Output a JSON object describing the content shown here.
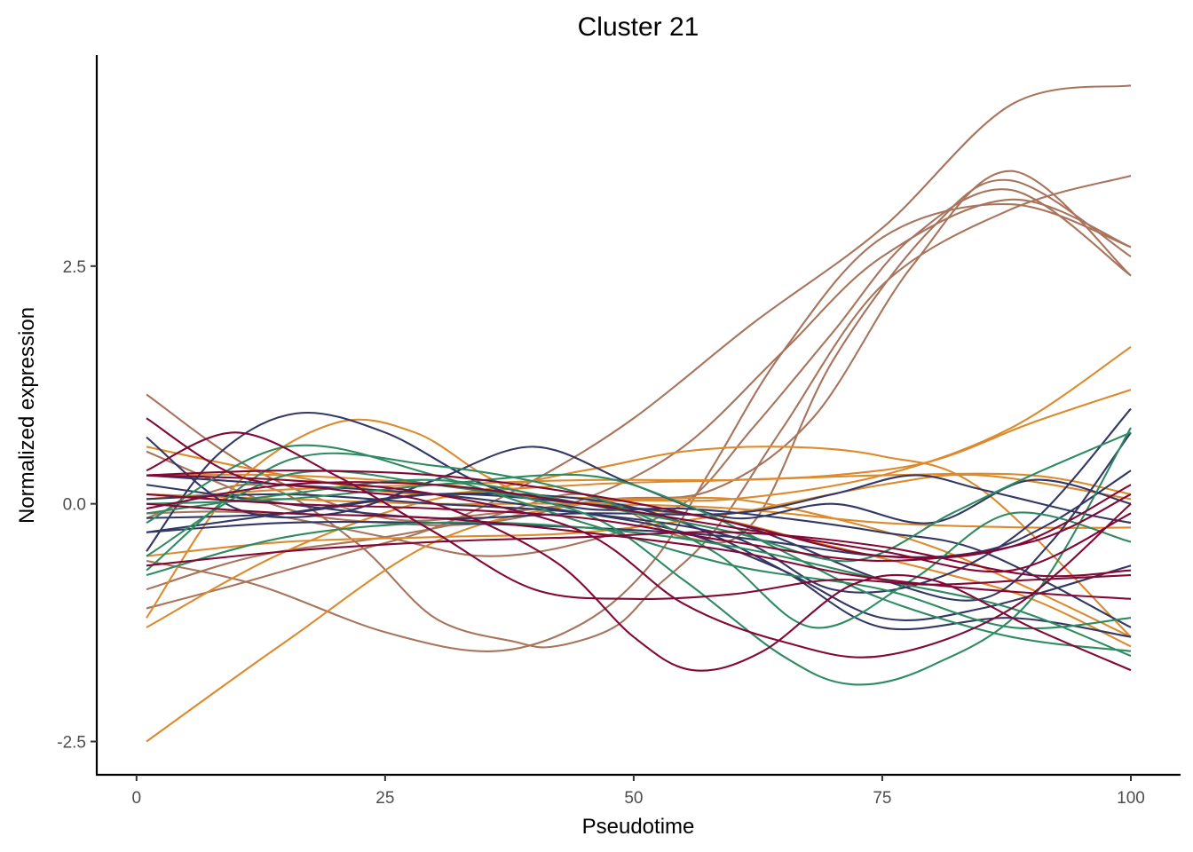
{
  "chart_data": {
    "type": "line",
    "title": "Cluster 21",
    "xlabel": "Pseudotime",
    "ylabel": "Normalized expression",
    "xlim": [
      -4,
      105
    ],
    "ylim": [
      -2.85,
      4.72
    ],
    "x_ticks": [
      0,
      25,
      50,
      75,
      100
    ],
    "x_tick_labels": [
      "0",
      "25",
      "50",
      "75",
      "100"
    ],
    "y_ticks": [
      -2.5,
      0.0,
      2.5
    ],
    "y_tick_labels": [
      "-2.5",
      "0.0",
      "2.5"
    ],
    "grid": false,
    "legend": "none",
    "colors": {
      "brown": "#a8745c",
      "orange": "#dc8a2c",
      "navy": "#323765",
      "green": "#2e8b61",
      "crimson": "#820835"
    },
    "series": [
      {
        "name": "brown-1",
        "color": "brown",
        "x": [
          1,
          12,
          25,
          36,
          48,
          58,
          68,
          78,
          88,
          100
        ],
        "y": [
          1.15,
          0.35,
          -0.15,
          -0.1,
          0.05,
          0.15,
          0.9,
          2.5,
          3.5,
          2.4
        ]
      },
      {
        "name": "brown-2",
        "color": "brown",
        "x": [
          1,
          12,
          25,
          35,
          45,
          55,
          62,
          70,
          80,
          88,
          100
        ],
        "y": [
          -0.9,
          -0.55,
          -0.35,
          -0.15,
          0.1,
          -0.35,
          -0.2,
          1.5,
          2.9,
          3.4,
          2.6
        ]
      },
      {
        "name": "brown-3",
        "color": "brown",
        "x": [
          1,
          15,
          25,
          35,
          45,
          55,
          65,
          75,
          88,
          100
        ],
        "y": [
          0.55,
          -0.05,
          -0.2,
          -0.2,
          0.05,
          0.6,
          1.6,
          2.6,
          3.2,
          2.7
        ]
      },
      {
        "name": "brown-4",
        "color": "brown",
        "x": [
          1,
          12,
          25,
          35,
          45,
          55,
          62,
          70,
          78,
          88,
          100
        ],
        "y": [
          -0.1,
          -0.1,
          -0.35,
          -0.55,
          -0.4,
          0.0,
          0.8,
          1.8,
          2.8,
          3.3,
          2.4
        ]
      },
      {
        "name": "brown-5",
        "color": "brown",
        "x": [
          1,
          12,
          25,
          36,
          45,
          52,
          58,
          65,
          75,
          88,
          100
        ],
        "y": [
          -0.6,
          -0.85,
          -1.35,
          -1.55,
          -1.25,
          -0.6,
          0.4,
          1.6,
          2.8,
          3.15,
          2.7
        ]
      },
      {
        "name": "brown-6",
        "color": "brown",
        "x": [
          1,
          10,
          20,
          30,
          40,
          50,
          62,
          75,
          88,
          100
        ],
        "y": [
          -1.1,
          -0.85,
          -0.55,
          -0.25,
          0.25,
          0.9,
          1.9,
          2.9,
          4.2,
          4.4
        ]
      },
      {
        "name": "brown-7",
        "color": "brown",
        "x": [
          1,
          12,
          22,
          30,
          38,
          42,
          48,
          52,
          58,
          65,
          75,
          88,
          100
        ],
        "y": [
          -0.15,
          0.2,
          -0.4,
          -1.2,
          -1.45,
          -1.5,
          -1.3,
          -0.9,
          -0.3,
          0.8,
          2.3,
          3.1,
          3.45
        ]
      },
      {
        "name": "orange-1",
        "color": "orange",
        "x": [
          1,
          15,
          30,
          45,
          60,
          75,
          88,
          100
        ],
        "y": [
          -2.5,
          -1.45,
          -0.4,
          0.0,
          0.05,
          0.3,
          0.8,
          1.65
        ]
      },
      {
        "name": "orange-2",
        "color": "orange",
        "x": [
          1,
          15,
          30,
          45,
          60,
          70,
          80,
          90,
          100
        ],
        "y": [
          -1.3,
          -0.5,
          0.05,
          0.2,
          0.25,
          0.3,
          0.45,
          0.85,
          1.2
        ]
      },
      {
        "name": "orange-3",
        "color": "orange",
        "x": [
          1,
          10,
          20,
          28,
          35,
          40,
          50,
          60,
          70,
          80,
          90,
          100
        ],
        "y": [
          -1.2,
          0.2,
          0.85,
          0.75,
          0.3,
          0.1,
          0.05,
          0.05,
          -0.15,
          -0.45,
          -0.9,
          -1.4
        ]
      },
      {
        "name": "orange-4",
        "color": "orange",
        "x": [
          1,
          15,
          30,
          45,
          55,
          65,
          75,
          85,
          100
        ],
        "y": [
          0.6,
          0.3,
          0.1,
          0.35,
          0.55,
          0.6,
          0.5,
          0.15,
          -1.4
        ]
      },
      {
        "name": "orange-5",
        "color": "orange",
        "x": [
          1,
          15,
          30,
          45,
          60,
          75,
          85,
          100
        ],
        "y": [
          -0.55,
          -0.4,
          -0.35,
          -0.3,
          -0.1,
          0.2,
          0.3,
          0.05
        ]
      },
      {
        "name": "orange-6",
        "color": "orange",
        "x": [
          1,
          15,
          30,
          45,
          60,
          75,
          90,
          100
        ],
        "y": [
          0.05,
          0.15,
          0.2,
          0.25,
          0.25,
          0.3,
          0.3,
          0.1
        ]
      },
      {
        "name": "orange-7",
        "color": "orange",
        "x": [
          1,
          15,
          30,
          45,
          60,
          75,
          90,
          100
        ],
        "y": [
          0.1,
          0.05,
          0.0,
          0.0,
          -0.05,
          -0.2,
          -0.25,
          -0.25
        ]
      },
      {
        "name": "orange-8",
        "color": "orange",
        "x": [
          1,
          15,
          30,
          45,
          58,
          68,
          80,
          90,
          100
        ],
        "y": [
          0.3,
          0.3,
          0.2,
          0.0,
          -0.15,
          -0.4,
          -0.7,
          -1.0,
          -1.5
        ]
      },
      {
        "name": "navy-1",
        "color": "navy",
        "x": [
          1,
          8,
          16,
          25,
          35,
          45,
          55,
          65,
          75,
          85,
          100
        ],
        "y": [
          -0.5,
          0.5,
          0.95,
          0.75,
          0.2,
          -0.05,
          -0.05,
          -0.15,
          -0.3,
          -0.5,
          -1.3
        ]
      },
      {
        "name": "navy-2",
        "color": "navy",
        "x": [
          1,
          10,
          20,
          30,
          40,
          50,
          60,
          70,
          80,
          90,
          100
        ],
        "y": [
          0.7,
          -0.05,
          -0.1,
          0.25,
          0.6,
          0.2,
          -0.15,
          0.0,
          -0.2,
          0.25,
          0.0
        ]
      },
      {
        "name": "navy-3",
        "color": "navy",
        "x": [
          1,
          15,
          30,
          45,
          60,
          70,
          78,
          85,
          95,
          100
        ],
        "y": [
          0.2,
          0.0,
          -0.15,
          -0.1,
          -0.1,
          0.1,
          0.3,
          0.15,
          -0.1,
          -0.2
        ]
      },
      {
        "name": "navy-4",
        "color": "navy",
        "x": [
          1,
          15,
          30,
          45,
          60,
          75,
          85,
          92,
          100
        ],
        "y": [
          -0.3,
          -0.2,
          -0.2,
          -0.25,
          -0.35,
          -0.55,
          -0.5,
          -0.2,
          0.35
        ]
      },
      {
        "name": "navy-5",
        "color": "navy",
        "x": [
          1,
          15,
          30,
          45,
          55,
          65,
          75,
          85,
          100
        ],
        "y": [
          0.3,
          0.2,
          0.1,
          -0.1,
          -0.3,
          -0.7,
          -1.2,
          -1.1,
          -0.65
        ]
      },
      {
        "name": "navy-6",
        "color": "navy",
        "x": [
          1,
          15,
          30,
          45,
          55,
          65,
          75,
          88,
          100
        ],
        "y": [
          -0.15,
          -0.1,
          0.1,
          0.05,
          -0.2,
          -0.7,
          -1.3,
          -1.2,
          -1.4
        ]
      },
      {
        "name": "navy-7",
        "color": "navy",
        "x": [
          1,
          15,
          30,
          45,
          60,
          75,
          85,
          92,
          100
        ],
        "y": [
          -0.3,
          -0.1,
          0.1,
          0.0,
          -0.2,
          -0.8,
          -1.0,
          -0.4,
          0.75
        ]
      },
      {
        "name": "navy-8",
        "color": "navy",
        "x": [
          1,
          15,
          30,
          45,
          60,
          70,
          80,
          90,
          100
        ],
        "y": [
          0.05,
          0.1,
          0.0,
          -0.1,
          -0.35,
          -0.9,
          -0.8,
          -0.2,
          1.0
        ]
      },
      {
        "name": "green-1",
        "color": "green",
        "x": [
          1,
          15,
          30,
          45,
          55,
          65,
          72,
          80,
          90,
          100
        ],
        "y": [
          -0.55,
          0.3,
          0.2,
          -0.1,
          -0.8,
          -1.6,
          -1.9,
          -1.7,
          -1.0,
          0.8
        ]
      },
      {
        "name": "green-2",
        "color": "green",
        "x": [
          1,
          15,
          30,
          45,
          58,
          68,
          78,
          88,
          100
        ],
        "y": [
          -0.7,
          0.45,
          0.4,
          0.1,
          -0.5,
          -1.3,
          -0.8,
          -0.1,
          -0.4
        ]
      },
      {
        "name": "green-3",
        "color": "green",
        "x": [
          1,
          15,
          30,
          45,
          60,
          75,
          88,
          100
        ],
        "y": [
          -0.2,
          0.6,
          0.3,
          -0.2,
          -0.65,
          -0.9,
          -1.3,
          -1.2
        ]
      },
      {
        "name": "green-4",
        "color": "green",
        "x": [
          1,
          15,
          30,
          45,
          60,
          72,
          82,
          90,
          100
        ],
        "y": [
          -0.1,
          0.1,
          0.25,
          0.0,
          -0.3,
          -0.6,
          -0.1,
          0.3,
          0.75
        ]
      },
      {
        "name": "green-5",
        "color": "green",
        "x": [
          1,
          15,
          30,
          45,
          60,
          75,
          88,
          100
        ],
        "y": [
          -0.75,
          -0.35,
          -0.2,
          -0.25,
          -0.45,
          -0.8,
          -1.1,
          -1.6
        ]
      },
      {
        "name": "green-6",
        "color": "green",
        "x": [
          1,
          15,
          30,
          45,
          55,
          65,
          75,
          88,
          100
        ],
        "y": [
          0.0,
          0.05,
          0.2,
          0.3,
          0.0,
          -0.5,
          -1.0,
          -1.4,
          -1.55
        ]
      },
      {
        "name": "crimson-1",
        "color": "crimson",
        "x": [
          1,
          10,
          20,
          30,
          42,
          50,
          56,
          63,
          72,
          80,
          90,
          100
        ],
        "y": [
          0.9,
          0.3,
          0.15,
          0.0,
          -0.6,
          -1.4,
          -1.75,
          -1.55,
          -0.85,
          -0.8,
          -1.3,
          -1.75
        ]
      },
      {
        "name": "crimson-2",
        "color": "crimson",
        "x": [
          1,
          10,
          20,
          30,
          40,
          50,
          60,
          70,
          80,
          90,
          100
        ],
        "y": [
          0.35,
          0.75,
          0.3,
          -0.3,
          -0.9,
          -1.0,
          -0.95,
          -0.8,
          -0.85,
          -0.8,
          -0.75
        ]
      },
      {
        "name": "crimson-3",
        "color": "crimson",
        "x": [
          1,
          15,
          30,
          45,
          55,
          65,
          75,
          88,
          100
        ],
        "y": [
          0.3,
          0.25,
          0.1,
          -0.3,
          -1.05,
          -1.45,
          -1.6,
          -1.1,
          0.0
        ]
      },
      {
        "name": "crimson-4",
        "color": "crimson",
        "x": [
          1,
          15,
          30,
          45,
          60,
          75,
          90,
          100
        ],
        "y": [
          -0.65,
          -0.5,
          -0.4,
          -0.35,
          -0.3,
          -0.45,
          -0.75,
          -0.7
        ]
      },
      {
        "name": "crimson-5",
        "color": "crimson",
        "x": [
          1,
          15,
          30,
          45,
          60,
          72,
          85,
          100
        ],
        "y": [
          0.0,
          -0.1,
          -0.15,
          -0.3,
          -0.5,
          -0.75,
          -0.9,
          -1.0
        ]
      },
      {
        "name": "crimson-6",
        "color": "crimson",
        "x": [
          1,
          15,
          30,
          45,
          60,
          75,
          88,
          100
        ],
        "y": [
          0.3,
          0.35,
          0.3,
          0.1,
          -0.2,
          -0.55,
          -0.45,
          0.2
        ]
      },
      {
        "name": "crimson-7",
        "color": "crimson",
        "x": [
          1,
          15,
          30,
          45,
          60,
          75,
          88,
          100
        ],
        "y": [
          -0.05,
          0.2,
          0.2,
          0.0,
          -0.25,
          -0.5,
          -0.7,
          -0.1
        ]
      },
      {
        "name": "crimson-8",
        "color": "crimson",
        "x": [
          1,
          15,
          30,
          45,
          60,
          75,
          90,
          100
        ],
        "y": [
          0.1,
          0.0,
          -0.05,
          -0.15,
          -0.4,
          -0.6,
          -0.4,
          0.1
        ]
      }
    ]
  }
}
